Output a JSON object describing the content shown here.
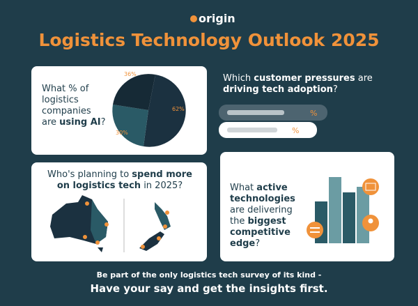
{
  "brand": "origin",
  "title": "Logistics Technology Outlook 2025",
  "ai_card": {
    "question": [
      "What % of logistics companies are ",
      "using AI",
      "?"
    ],
    "labels": [
      "36%",
      "62%",
      "30%"
    ]
  },
  "pressures_card": {
    "question": [
      "Which ",
      "customer pressures",
      " are ",
      "driving tech adoption",
      "?"
    ],
    "percent_signs": [
      "%",
      "%"
    ]
  },
  "spend_card": {
    "question": [
      "Who's planning to ",
      "spend more",
      " ",
      "on logistics tech",
      " in 2025?"
    ]
  },
  "tech_card": {
    "question": [
      "What ",
      "active technologies",
      " are delivering the ",
      "biggest competitive edge",
      "?"
    ]
  },
  "footer": {
    "line1": "Be part of the only logistics tech survey of its kind -",
    "line2": "Have your say and get the insights first."
  }
}
